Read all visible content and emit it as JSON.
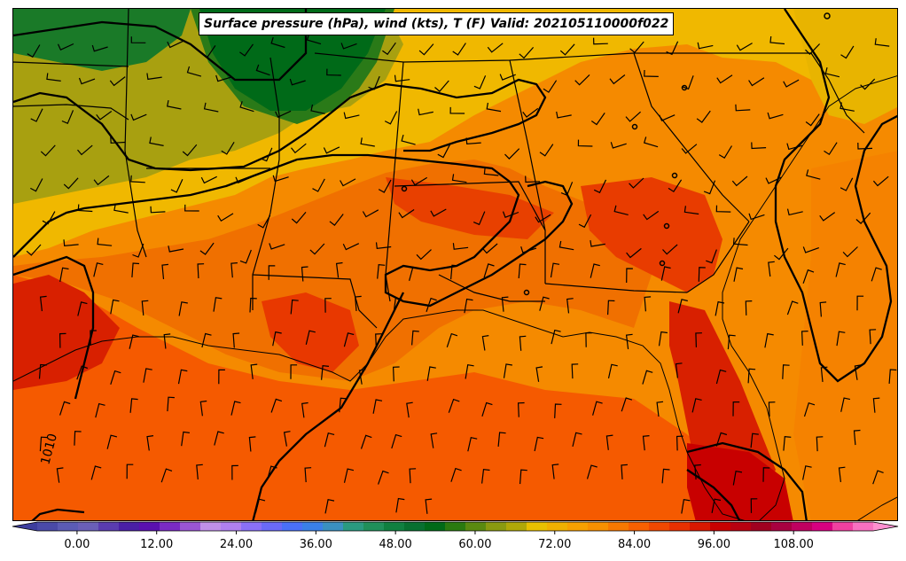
{
  "title": "Surface pressure (hPa), wind (kts), T (F) Valid: 202105110000f022",
  "contour_label": "1010",
  "colorbar": {
    "min": -6,
    "max": 120,
    "ticks": [
      "0.00",
      "12.00",
      "24.00",
      "36.00",
      "48.00",
      "60.00",
      "72.00",
      "84.00",
      "96.00",
      "108.00"
    ],
    "colors": [
      "#3d3d9e",
      "#4a4aa8",
      "#5b5bb5",
      "#6a5fb8",
      "#5a3cb0",
      "#4a1fa6",
      "#5a10b0",
      "#7a2ac4",
      "#9a55d4",
      "#c090e8",
      "#b080f0",
      "#8a70f8",
      "#6a6af8",
      "#4a70f8",
      "#3a80e8",
      "#3a90c0",
      "#2a9a80",
      "#20905a",
      "#108040",
      "#087030",
      "#006a18",
      "#2a7a10",
      "#5a8a10",
      "#8a9a10",
      "#b0a808",
      "#e8c000",
      "#f0b000",
      "#f8a000",
      "#f89000",
      "#f87800",
      "#f86000",
      "#f04800",
      "#e83000",
      "#d81800",
      "#c80000",
      "#b80010",
      "#a00020",
      "#a80040",
      "#c00060",
      "#d80080",
      "#f040a0",
      "#f870c0",
      "#ff90d0"
    ]
  }
}
